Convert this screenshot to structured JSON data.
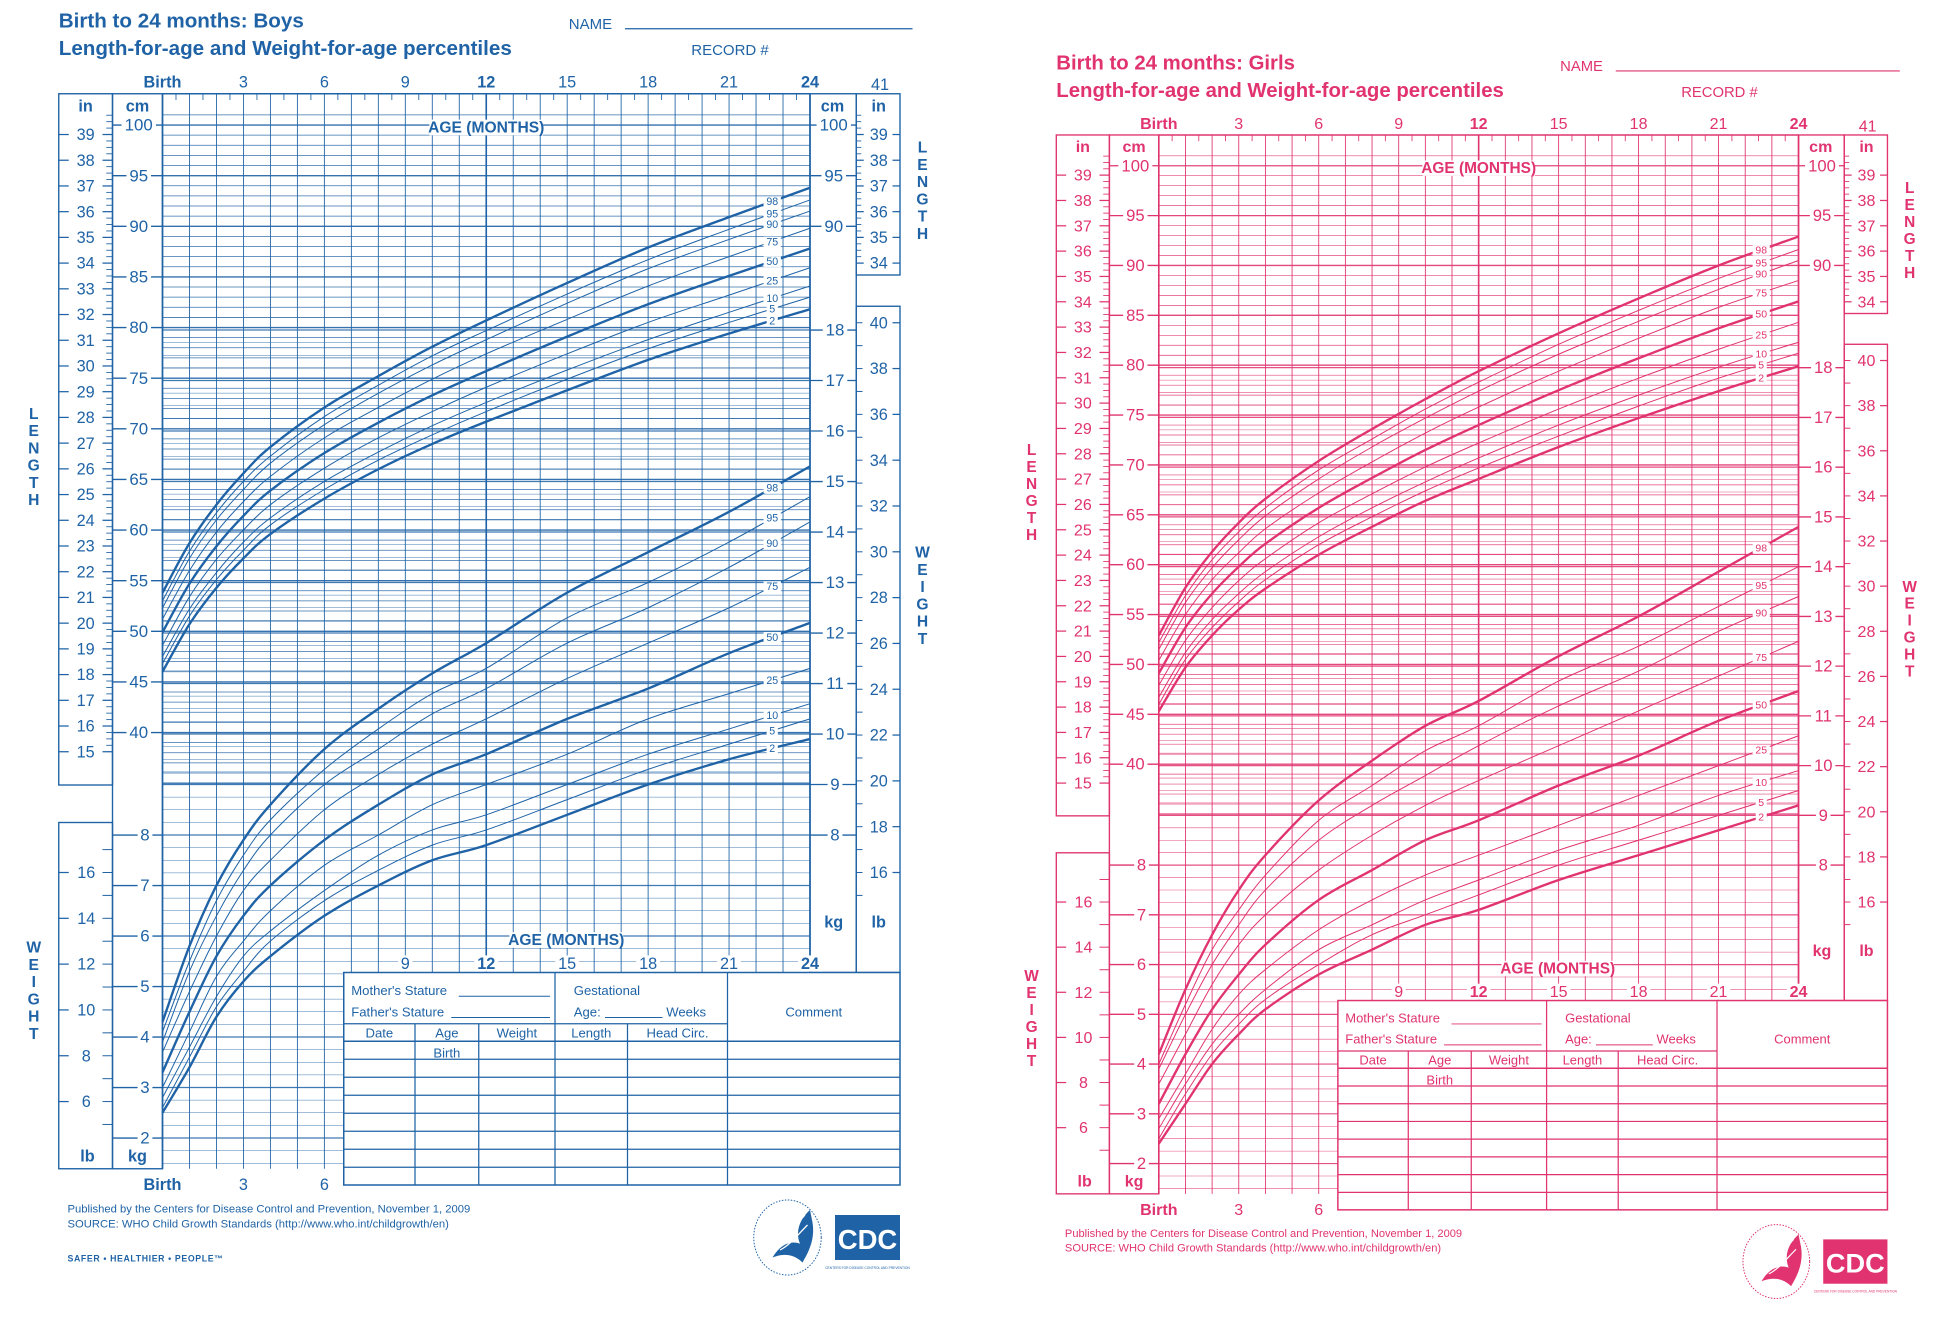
{
  "panels": [
    {
      "id": "boys",
      "title": "Birth to 24 months: Boys",
      "subtitle": "Length-for-age and Weight-for-age percentiles",
      "name_label": "NAME",
      "record_label": "RECORD #",
      "color": "#1f63a6",
      "top_age_ticks": [
        "Birth",
        "3",
        "6",
        "9",
        "12",
        "15",
        "18",
        "21",
        "24"
      ],
      "top_right_label": "41",
      "age_axis_label": "AGE (MONTHS)",
      "lower_age_ticks": [
        "9",
        "12",
        "15",
        "18",
        "21",
        "24"
      ],
      "bottom_age_ticks": [
        "Birth",
        "3",
        "6"
      ],
      "units": {
        "in": "in",
        "cm": "cm",
        "kg": "kg",
        "lb": "lb"
      },
      "side_labels": {
        "length": "LENGTH",
        "weight": "WEIGHT"
      },
      "left_in_ticks": [
        15,
        16,
        17,
        18,
        19,
        20,
        21,
        22,
        23,
        24,
        25,
        26,
        27,
        28,
        29,
        30,
        31,
        32,
        33,
        34,
        35,
        36,
        37,
        38,
        39
      ],
      "left_cm_ticks": [
        40,
        45,
        50,
        55,
        60,
        65,
        70,
        75,
        80,
        85,
        90,
        95,
        100
      ],
      "right_cm_ticks": [
        90,
        95,
        100
      ],
      "right_in_ticks": [
        34,
        35,
        36,
        37,
        38,
        39
      ],
      "left_kg_ticks": [
        2,
        3,
        4,
        5,
        6,
        7,
        8
      ],
      "right_kg_ticks": [
        8,
        9,
        10,
        11,
        12,
        13,
        14,
        15,
        16,
        17,
        18
      ],
      "left_lb_ticks": [
        6,
        8,
        10,
        12,
        14,
        16
      ],
      "right_lb_ticks": [
        16,
        18,
        20,
        22,
        24,
        26,
        28,
        30,
        32,
        34,
        36,
        38,
        40
      ],
      "table": {
        "mothers_stature": "Mother's Stature",
        "fathers_stature": "Father's Stature",
        "gestational": "Gestational",
        "age_label": "Age:",
        "weeks": "Weeks",
        "comment": "Comment",
        "columns": [
          "Date",
          "Age",
          "Weight",
          "Length",
          "Head  Circ."
        ],
        "first_row_age": "Birth"
      },
      "footer": {
        "published": "Published by the Centers for Disease Control and Prevention, November 1, 2009",
        "source": "SOURCE:  WHO Child Growth Standards (http://www.who.int/childgrowth/en)",
        "tagline": "SAFER • HEALTHIER • PEOPLE™"
      },
      "logo": {
        "cdc": "CDC",
        "cdc_sub": "CENTERS FOR DISEASE CONTROL AND PREVENTION"
      }
    },
    {
      "id": "girls",
      "title": "Birth to 24 months: Girls",
      "subtitle": "Length-for-age and Weight-for-age percentiles",
      "name_label": "NAME",
      "record_label": "RECORD #",
      "color": "#e0336f",
      "top_age_ticks": [
        "Birth",
        "3",
        "6",
        "9",
        "12",
        "15",
        "18",
        "21",
        "24"
      ],
      "top_right_label": "41",
      "age_axis_label": "AGE (MONTHS)",
      "lower_age_ticks": [
        "9",
        "12",
        "15",
        "18",
        "21",
        "24"
      ],
      "bottom_age_ticks": [
        "Birth",
        "3",
        "6"
      ],
      "units": {
        "in": "in",
        "cm": "cm",
        "kg": "kg",
        "lb": "lb"
      },
      "side_labels": {
        "length": "LENGTH",
        "weight": "WEIGHT"
      },
      "left_in_ticks": [
        15,
        16,
        17,
        18,
        19,
        20,
        21,
        22,
        23,
        24,
        25,
        26,
        27,
        28,
        29,
        30,
        31,
        32,
        33,
        34,
        35,
        36,
        37,
        38,
        39
      ],
      "left_cm_ticks": [
        40,
        45,
        50,
        55,
        60,
        65,
        70,
        75,
        80,
        85,
        90,
        95,
        100
      ],
      "right_cm_ticks": [
        90,
        95,
        100
      ],
      "right_in_ticks": [
        34,
        35,
        36,
        37,
        38,
        39
      ],
      "left_kg_ticks": [
        2,
        3,
        4,
        5,
        6,
        7,
        8
      ],
      "right_kg_ticks": [
        8,
        9,
        10,
        11,
        12,
        13,
        14,
        15,
        16,
        17,
        18
      ],
      "left_lb_ticks": [
        6,
        8,
        10,
        12,
        14,
        16
      ],
      "right_lb_ticks": [
        16,
        18,
        20,
        22,
        24,
        26,
        28,
        30,
        32,
        34,
        36,
        38,
        40
      ],
      "table": {
        "mothers_stature": "Mother's Stature",
        "fathers_stature": "Father's Stature",
        "gestational": "Gestational",
        "age_label": "Age:",
        "weeks": "Weeks",
        "comment": "Comment",
        "columns": [
          "Date",
          "Age",
          "Weight",
          "Length",
          "Head  Circ."
        ],
        "first_row_age": "Birth"
      },
      "footer": {
        "published": "Published by the Centers for Disease Control and Prevention, November 1, 2009",
        "source": "SOURCE:  WHO Child Growth Standards (http://www.who.int/childgrowth/en)",
        "tagline": ""
      },
      "logo": {
        "cdc": "CDC",
        "cdc_sub": "CENTERS FOR DISEASE CONTROL AND PREVENTION"
      }
    }
  ],
  "chart_data": [
    {
      "type": "line",
      "panel": "Boys",
      "measure": "Length-for-age",
      "xlabel": "AGE (MONTHS)",
      "ylabel": "LENGTH",
      "yunit": "cm",
      "xlim": [
        0,
        24
      ],
      "ylim": [
        40,
        100
      ],
      "grid": true,
      "x": [
        0,
        1,
        2,
        3,
        4,
        6,
        8,
        10,
        12,
        15,
        18,
        21,
        24
      ],
      "series": [
        {
          "name": "2",
          "values": [
            46.0,
            50.7,
            54.3,
            57.2,
            59.6,
            63.1,
            66.0,
            68.5,
            70.7,
            73.8,
            76.8,
            79.4,
            81.8
          ]
        },
        {
          "name": "5",
          "values": [
            46.8,
            51.5,
            55.1,
            58.0,
            60.5,
            64.0,
            66.9,
            69.4,
            71.7,
            74.9,
            77.9,
            80.5,
            83.0
          ]
        },
        {
          "name": "10",
          "values": [
            47.5,
            52.2,
            55.8,
            58.8,
            61.2,
            64.8,
            67.7,
            70.3,
            72.6,
            75.8,
            78.8,
            81.5,
            84.1
          ]
        },
        {
          "name": "25",
          "values": [
            48.6,
            53.4,
            57.1,
            60.0,
            62.5,
            66.1,
            69.1,
            71.7,
            74.1,
            77.4,
            80.5,
            83.2,
            85.9
          ]
        },
        {
          "name": "50",
          "values": [
            49.9,
            54.7,
            58.4,
            61.4,
            63.9,
            67.6,
            70.6,
            73.3,
            75.7,
            79.1,
            82.3,
            85.1,
            87.8
          ]
        },
        {
          "name": "75",
          "values": [
            51.2,
            56.0,
            59.8,
            62.8,
            65.3,
            69.1,
            72.1,
            74.9,
            77.4,
            80.8,
            84.1,
            87.0,
            89.8
          ]
        },
        {
          "name": "90",
          "values": [
            52.3,
            57.2,
            61.0,
            64.0,
            66.6,
            70.4,
            73.5,
            76.3,
            78.8,
            82.4,
            85.8,
            88.7,
            91.5
          ]
        },
        {
          "name": "95",
          "values": [
            53.0,
            57.9,
            61.7,
            64.8,
            67.3,
            71.2,
            74.3,
            77.2,
            79.7,
            83.3,
            86.7,
            89.7,
            92.6
          ]
        },
        {
          "name": "98",
          "values": [
            53.8,
            58.7,
            62.5,
            65.6,
            68.2,
            72.1,
            75.2,
            78.1,
            80.7,
            84.4,
            87.9,
            90.9,
            93.8
          ]
        }
      ]
    },
    {
      "type": "line",
      "panel": "Boys",
      "measure": "Weight-for-age",
      "xlabel": "AGE (MONTHS)",
      "ylabel": "WEIGHT",
      "yunit": "kg",
      "xlim": [
        0,
        24
      ],
      "ylim": [
        2,
        18
      ],
      "grid": true,
      "x": [
        0,
        1,
        2,
        3,
        4,
        6,
        8,
        10,
        12,
        15,
        18,
        21,
        24
      ],
      "series": [
        {
          "name": "2",
          "values": [
            2.5,
            3.4,
            4.4,
            5.1,
            5.6,
            6.4,
            7.0,
            7.5,
            7.8,
            8.4,
            9.0,
            9.5,
            9.9
          ]
        },
        {
          "name": "5",
          "values": [
            2.6,
            3.6,
            4.6,
            5.3,
            5.9,
            6.7,
            7.3,
            7.8,
            8.1,
            8.7,
            9.3,
            9.8,
            10.3
          ]
        },
        {
          "name": "10",
          "values": [
            2.8,
            3.8,
            4.8,
            5.6,
            6.1,
            6.9,
            7.6,
            8.1,
            8.4,
            9.0,
            9.6,
            10.1,
            10.6
          ]
        },
        {
          "name": "25",
          "values": [
            3.0,
            4.1,
            5.2,
            5.9,
            6.5,
            7.4,
            8.0,
            8.6,
            9.0,
            9.6,
            10.3,
            10.8,
            11.3
          ]
        },
        {
          "name": "50",
          "values": [
            3.3,
            4.5,
            5.6,
            6.4,
            7.0,
            7.9,
            8.6,
            9.2,
            9.6,
            10.3,
            10.9,
            11.6,
            12.2
          ]
        },
        {
          "name": "75",
          "values": [
            3.7,
            4.9,
            6.0,
            6.9,
            7.5,
            8.5,
            9.2,
            9.8,
            10.3,
            11.1,
            11.8,
            12.5,
            13.3
          ]
        },
        {
          "name": "90",
          "values": [
            3.9,
            5.3,
            6.4,
            7.3,
            8.0,
            9.0,
            9.7,
            10.4,
            10.9,
            11.8,
            12.5,
            13.3,
            14.2
          ]
        },
        {
          "name": "95",
          "values": [
            4.1,
            5.5,
            6.7,
            7.6,
            8.3,
            9.3,
            10.1,
            10.8,
            11.3,
            12.3,
            13.0,
            13.8,
            14.7
          ]
        },
        {
          "name": "98",
          "values": [
            4.3,
            5.8,
            7.0,
            7.9,
            8.6,
            9.7,
            10.5,
            11.2,
            11.8,
            12.8,
            13.6,
            14.4,
            15.3
          ]
        }
      ]
    },
    {
      "type": "line",
      "panel": "Girls",
      "measure": "Length-for-age",
      "xlabel": "AGE (MONTHS)",
      "ylabel": "LENGTH",
      "yunit": "cm",
      "xlim": [
        0,
        24
      ],
      "ylim": [
        40,
        100
      ],
      "grid": true,
      "x": [
        0,
        1,
        2,
        3,
        4,
        6,
        8,
        10,
        12,
        15,
        18,
        21,
        24
      ],
      "series": [
        {
          "name": "2",
          "values": [
            45.3,
            49.7,
            52.9,
            55.5,
            57.6,
            61.0,
            63.8,
            66.4,
            68.6,
            71.8,
            74.7,
            77.4,
            79.9
          ]
        },
        {
          "name": "5",
          "values": [
            46.0,
            50.5,
            53.7,
            56.3,
            58.5,
            62.0,
            64.8,
            67.4,
            69.7,
            72.9,
            75.9,
            78.7,
            81.2
          ]
        },
        {
          "name": "10",
          "values": [
            46.7,
            51.2,
            54.5,
            57.1,
            59.3,
            62.8,
            65.7,
            68.3,
            70.7,
            74.0,
            77.0,
            79.8,
            82.3
          ]
        },
        {
          "name": "25",
          "values": [
            47.9,
            52.4,
            55.7,
            58.4,
            60.6,
            64.2,
            67.1,
            69.8,
            72.2,
            75.6,
            78.7,
            81.6,
            84.3
          ]
        },
        {
          "name": "50",
          "values": [
            49.1,
            53.7,
            57.1,
            59.8,
            62.1,
            65.7,
            68.7,
            71.5,
            74.0,
            77.5,
            80.7,
            83.7,
            86.4
          ]
        },
        {
          "name": "75",
          "values": [
            50.4,
            55.0,
            58.5,
            61.2,
            63.6,
            67.2,
            70.3,
            73.2,
            75.8,
            79.4,
            82.7,
            85.8,
            88.5
          ]
        },
        {
          "name": "90",
          "values": [
            51.5,
            56.2,
            59.7,
            62.5,
            64.9,
            68.6,
            71.8,
            74.7,
            77.4,
            81.1,
            84.4,
            87.6,
            90.5
          ]
        },
        {
          "name": "95",
          "values": [
            52.2,
            56.9,
            60.5,
            63.3,
            65.7,
            69.5,
            72.6,
            75.6,
            78.3,
            82.1,
            85.5,
            88.7,
            91.6
          ]
        },
        {
          "name": "98",
          "values": [
            52.9,
            57.7,
            61.3,
            64.2,
            66.6,
            70.4,
            73.6,
            76.6,
            79.4,
            83.2,
            86.7,
            90.0,
            92.9
          ]
        }
      ]
    },
    {
      "type": "line",
      "panel": "Girls",
      "measure": "Weight-for-age",
      "xlabel": "AGE (MONTHS)",
      "ylabel": "WEIGHT",
      "yunit": "kg",
      "xlim": [
        0,
        24
      ],
      "ylim": [
        2,
        18
      ],
      "grid": true,
      "x": [
        0,
        1,
        2,
        3,
        4,
        6,
        8,
        10,
        12,
        15,
        18,
        21,
        24
      ],
      "series": [
        {
          "name": "2",
          "values": [
            2.4,
            3.2,
            4.0,
            4.6,
            5.1,
            5.8,
            6.3,
            6.8,
            7.1,
            7.7,
            8.2,
            8.7,
            9.2
          ]
        },
        {
          "name": "5",
          "values": [
            2.5,
            3.4,
            4.2,
            4.8,
            5.3,
            6.0,
            6.6,
            7.0,
            7.4,
            8.0,
            8.5,
            9.0,
            9.5
          ]
        },
        {
          "name": "10",
          "values": [
            2.7,
            3.6,
            4.4,
            5.0,
            5.5,
            6.3,
            6.8,
            7.3,
            7.7,
            8.3,
            8.8,
            9.4,
            9.9
          ]
        },
        {
          "name": "25",
          "values": [
            2.9,
            3.8,
            4.7,
            5.4,
            5.9,
            6.7,
            7.3,
            7.8,
            8.2,
            8.8,
            9.4,
            10.0,
            10.6
          ]
        },
        {
          "name": "50",
          "values": [
            3.2,
            4.2,
            5.1,
            5.8,
            6.4,
            7.3,
            7.9,
            8.5,
            8.9,
            9.6,
            10.2,
            10.9,
            11.5
          ]
        },
        {
          "name": "75",
          "values": [
            3.6,
            4.6,
            5.6,
            6.4,
            7.0,
            7.9,
            8.6,
            9.2,
            9.7,
            10.4,
            11.1,
            11.8,
            12.5
          ]
        },
        {
          "name": "90",
          "values": [
            3.9,
            5.0,
            6.0,
            6.8,
            7.5,
            8.5,
            9.2,
            9.8,
            10.4,
            11.2,
            11.9,
            12.7,
            13.4
          ]
        },
        {
          "name": "95",
          "values": [
            4.0,
            5.2,
            6.3,
            7.1,
            7.8,
            8.9,
            9.6,
            10.3,
            10.8,
            11.7,
            12.4,
            13.2,
            14.0
          ]
        },
        {
          "name": "98",
          "values": [
            4.2,
            5.5,
            6.6,
            7.5,
            8.2,
            9.3,
            10.1,
            10.8,
            11.3,
            12.2,
            13.0,
            13.9,
            14.8
          ]
        }
      ]
    }
  ]
}
